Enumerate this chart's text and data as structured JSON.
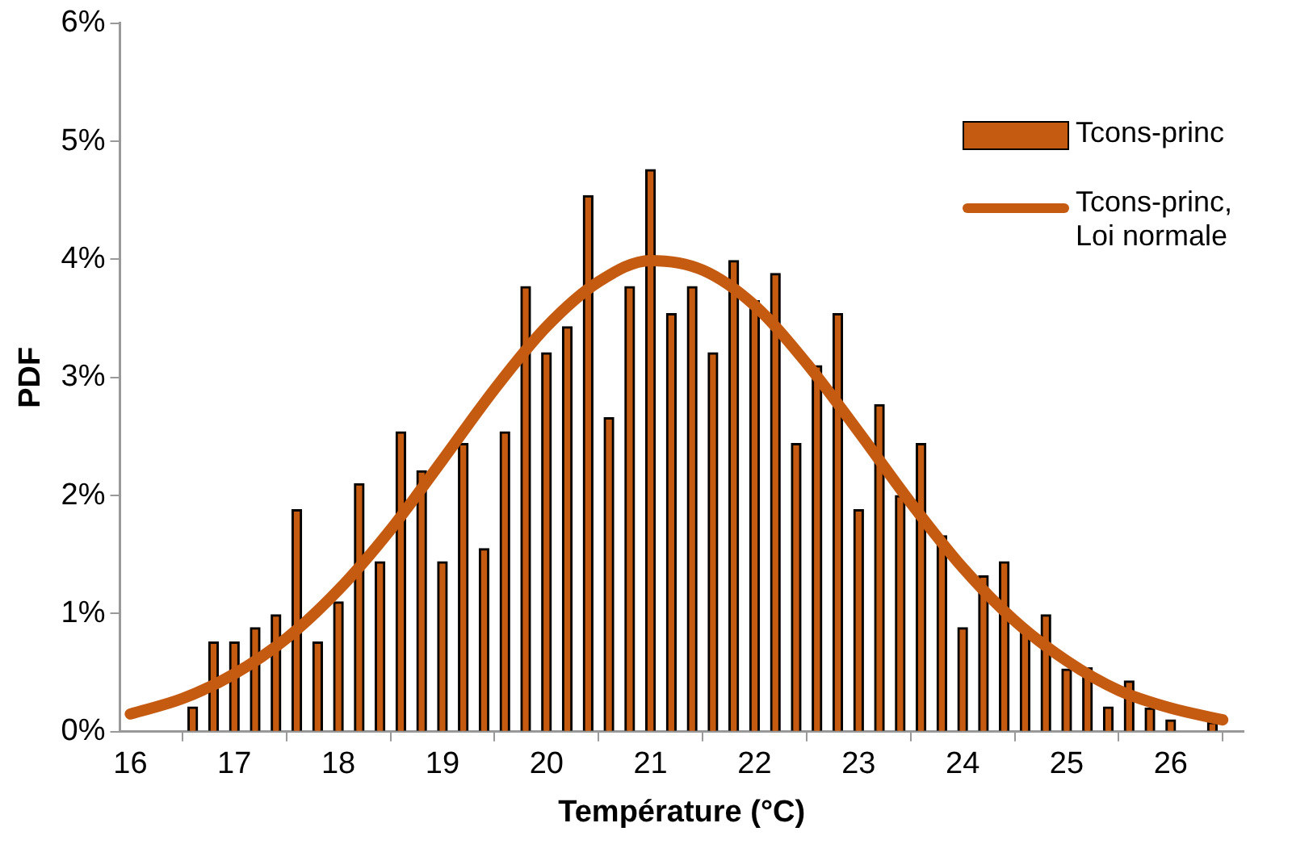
{
  "chart_data": {
    "type": "bar",
    "xlabel": "Température (°C)",
    "ylabel": "PDF",
    "xlim": [
      15.9,
      26.7
    ],
    "xticks": [
      16,
      17,
      18,
      19,
      20,
      21,
      22,
      23,
      24,
      25,
      26
    ],
    "ylim": [
      0,
      6
    ],
    "yticks": [
      {
        "value": 0,
        "label": "0%"
      },
      {
        "value": 1,
        "label": "1%"
      },
      {
        "value": 2,
        "label": "2%"
      },
      {
        "value": 3,
        "label": "3%"
      },
      {
        "value": 4,
        "label": "4%"
      },
      {
        "value": 5,
        "label": "5%"
      },
      {
        "value": 6,
        "label": "6%"
      }
    ],
    "grid": false,
    "legend": "top right",
    "marker": "none",
    "series": [
      {
        "name": "Tcons-princ",
        "color": "#c55a11",
        "x": [
          16.6,
          16.8,
          17.0,
          17.2,
          17.4,
          17.6,
          17.8,
          18.0,
          18.2,
          18.4,
          18.6,
          18.8,
          19.0,
          19.2,
          19.4,
          19.6,
          19.8,
          20.0,
          20.2,
          20.4,
          20.6,
          20.8,
          21.0,
          21.2,
          21.4,
          21.6,
          21.8,
          22.0,
          22.2,
          22.4,
          22.6,
          22.8,
          23.0,
          23.2,
          23.4,
          23.6,
          23.8,
          24.0,
          24.2,
          24.4,
          24.6,
          24.8,
          25.0,
          25.2,
          25.4,
          25.6,
          25.8,
          26.0,
          26.2,
          26.4
        ],
        "values": [
          0.21,
          0.76,
          0.76,
          0.88,
          0.99,
          1.88,
          0.76,
          1.1,
          2.1,
          1.44,
          2.54,
          2.21,
          1.44,
          2.44,
          1.55,
          2.54,
          3.77,
          3.21,
          3.43,
          4.54,
          2.66,
          3.77,
          4.76,
          3.54,
          3.77,
          3.21,
          3.99,
          3.65,
          3.88,
          2.44,
          3.1,
          3.54,
          1.88,
          2.77,
          2.0,
          2.44,
          1.66,
          0.88,
          1.32,
          1.44,
          0.88,
          0.99,
          0.53,
          0.54,
          0.21,
          0.43,
          0.2,
          0.1,
          0,
          0.08
        ]
      },
      {
        "name": "Tcons-princ, Loi normale",
        "type": "line",
        "color": "#c55a11",
        "line_style": "solid",
        "x": [
          16,
          16.5,
          17,
          17.5,
          18,
          18.5,
          19,
          19.5,
          20,
          20.5,
          21,
          21.5,
          22,
          22.5,
          23,
          23.5,
          24,
          24.5,
          25,
          25.5,
          26,
          26.5
        ],
        "values": [
          0.15,
          0.28,
          0.49,
          0.79,
          1.2,
          1.71,
          2.3,
          2.9,
          3.43,
          3.81,
          3.99,
          3.91,
          3.61,
          3.12,
          2.54,
          1.94,
          1.39,
          0.94,
          0.6,
          0.35,
          0.2,
          0.1
        ]
      }
    ]
  }
}
